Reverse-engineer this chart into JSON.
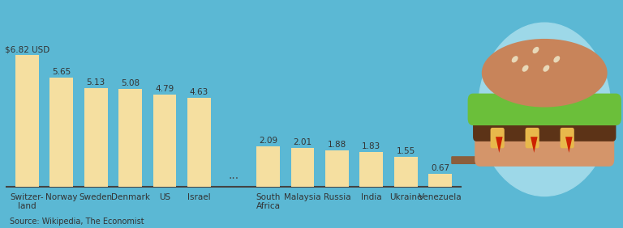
{
  "categories": [
    "Switzer-\nland",
    "Norway",
    "Sweden",
    "Denmark",
    "US",
    "Israel",
    "",
    "South\nAfrica",
    "Malaysia",
    "Russia",
    "India",
    "Ukraine",
    "Venezuela"
  ],
  "values": [
    6.82,
    5.65,
    5.13,
    5.08,
    4.79,
    4.63,
    null,
    2.09,
    2.01,
    1.88,
    1.83,
    1.55,
    0.67
  ],
  "bar_color": "#F5DFA0",
  "background_color": "#5BB8D4",
  "source_text": "Source: Wikipedia, The Economist",
  "value_labels": [
    "$6.82 USD",
    "5.65",
    "5.13",
    "5.08",
    "4.79",
    "4.63",
    "",
    "2.09",
    "2.01",
    "1.88",
    "1.83",
    "1.55",
    "0.67"
  ],
  "dots_label": "...",
  "label_fontsize": 7.5,
  "tick_fontsize": 7.5,
  "source_fontsize": 7
}
